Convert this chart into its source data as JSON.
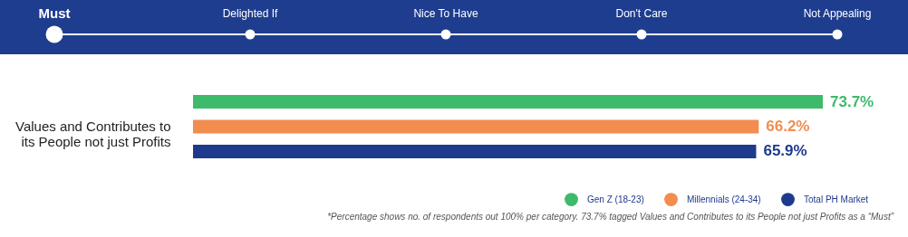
{
  "chart_data": {
    "type": "bar",
    "orientation": "horizontal",
    "categories": [
      "Values and Contributes to its People not just Profits"
    ],
    "series": [
      {
        "name": "Gen Z (18-23)",
        "color": "#3dba6a",
        "values": [
          73.7
        ],
        "value_labels": [
          "73.7%"
        ]
      },
      {
        "name": "Millennials (24-34)",
        "color": "#f28c4f",
        "values": [
          66.2
        ],
        "value_labels": [
          "66.2%"
        ]
      },
      {
        "name": "Total PH Market",
        "color": "#1e3a8c",
        "values": [
          65.9
        ],
        "value_labels": [
          "65.9%"
        ]
      }
    ],
    "legend": "bottom right",
    "annotations": [
      "Must",
      "Delighted If",
      "Nice To Have",
      "Don't Care",
      "Not Appealing",
      "*Percentage shows no. of respondents out 100% per category. 73.7% tagged Values and Contributes to its People not just Profits as a “Must”"
    ]
  }
}
